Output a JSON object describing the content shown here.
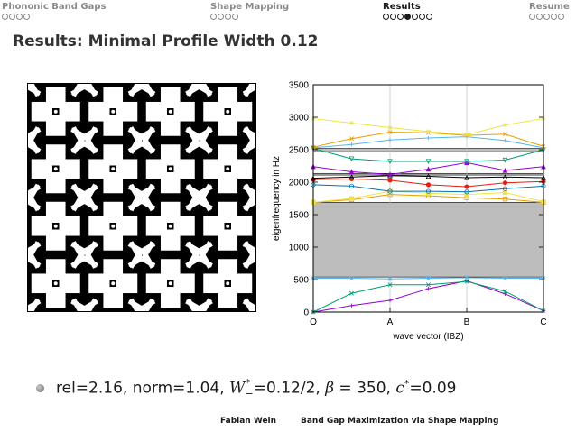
{
  "nav": {
    "sections": [
      {
        "label": "Phononic Band Gaps",
        "dots": 4,
        "filled": -1,
        "active": false
      },
      {
        "label": "Shape Mapping",
        "dots": 4,
        "filled": -1,
        "active": false
      },
      {
        "label": "Results",
        "dots": 7,
        "filled": 3,
        "active": true
      },
      {
        "label": "Resume",
        "dots": 5,
        "filled": -1,
        "active": false
      }
    ]
  },
  "frame": {
    "title": "Results: Minimal Profile Width 0.12"
  },
  "bullet": {
    "rel": "rel=2.16, ",
    "norm": "norm=1.04, ",
    "w": "W",
    "w_sub": "−",
    "w_sup": "*",
    "w_val": "=0.12/2, ",
    "beta": "β",
    "beta_val": " = 350, ",
    "c": "c",
    "c_sup": "*",
    "c_val": "=0.09"
  },
  "footer": {
    "author": "Fabian Wein",
    "title": "Band Gap Maximization via Shape Mapping"
  },
  "chart_data": {
    "type": "line",
    "xlabel": "wave vector (IBZ)",
    "ylabel": "eigenfrequency in Hz",
    "x_ticks": [
      "O",
      "A",
      "B",
      "C"
    ],
    "y_ticks": [
      0,
      500,
      1000,
      1500,
      2000,
      2500,
      3000,
      3500
    ],
    "ylim": [
      0,
      3500
    ],
    "x": [
      0,
      0.5,
      1,
      1.5,
      2,
      2.5,
      3
    ],
    "grid": "vertical lines at A and B",
    "band_gaps": [
      {
        "from": 540,
        "to": 1690,
        "color": "#bdbdbd"
      },
      {
        "from": 2110,
        "to": 2135,
        "color": "#bdbdbd"
      },
      {
        "from": 2470,
        "to": 2520,
        "color": "#bdbdbd"
      }
    ],
    "series": [
      {
        "color": "#9400d3",
        "marker": "plus",
        "values": [
          0,
          100,
          180,
          360,
          480,
          280,
          20
        ]
      },
      {
        "color": "#009e73",
        "marker": "x",
        "values": [
          0,
          290,
          420,
          420,
          470,
          320,
          20
        ]
      },
      {
        "color": "#56b4e9",
        "marker": "star",
        "values": [
          520,
          520,
          510,
          520,
          530,
          520,
          520
        ]
      },
      {
        "color": "#e69f00",
        "marker": "square",
        "values": [
          1690,
          1730,
          1810,
          1790,
          1760,
          1740,
          1690
        ]
      },
      {
        "color": "#f0e442",
        "marker": "square-filled",
        "values": [
          1690,
          1750,
          1860,
          1830,
          1810,
          1840,
          1700
        ]
      },
      {
        "color": "#0072b2",
        "marker": "circle",
        "values": [
          1960,
          1940,
          1860,
          1860,
          1850,
          1900,
          1940
        ]
      },
      {
        "color": "#e51e10",
        "marker": "circle-filled",
        "values": [
          2040,
          2050,
          2030,
          1960,
          1930,
          1990,
          2010
        ]
      },
      {
        "color": "#000000",
        "marker": "triangle",
        "values": [
          2060,
          2080,
          2100,
          2090,
          2070,
          2080,
          2070
        ]
      },
      {
        "color": "#9400d3",
        "marker": "triangle-filled",
        "values": [
          2240,
          2160,
          2120,
          2200,
          2300,
          2180,
          2240
        ]
      },
      {
        "color": "#009e73",
        "marker": "triangle-down",
        "values": [
          2520,
          2360,
          2320,
          2320,
          2320,
          2340,
          2500
        ]
      },
      {
        "color": "#56b4e9",
        "marker": "plus",
        "values": [
          2530,
          2580,
          2650,
          2680,
          2700,
          2640,
          2530
        ]
      },
      {
        "color": "#e69f00",
        "marker": "x",
        "values": [
          2540,
          2670,
          2770,
          2760,
          2720,
          2740,
          2550
        ]
      },
      {
        "color": "#f0e442",
        "marker": "star",
        "values": [
          2980,
          2910,
          2840,
          2780,
          2730,
          2880,
          2980
        ]
      }
    ]
  }
}
